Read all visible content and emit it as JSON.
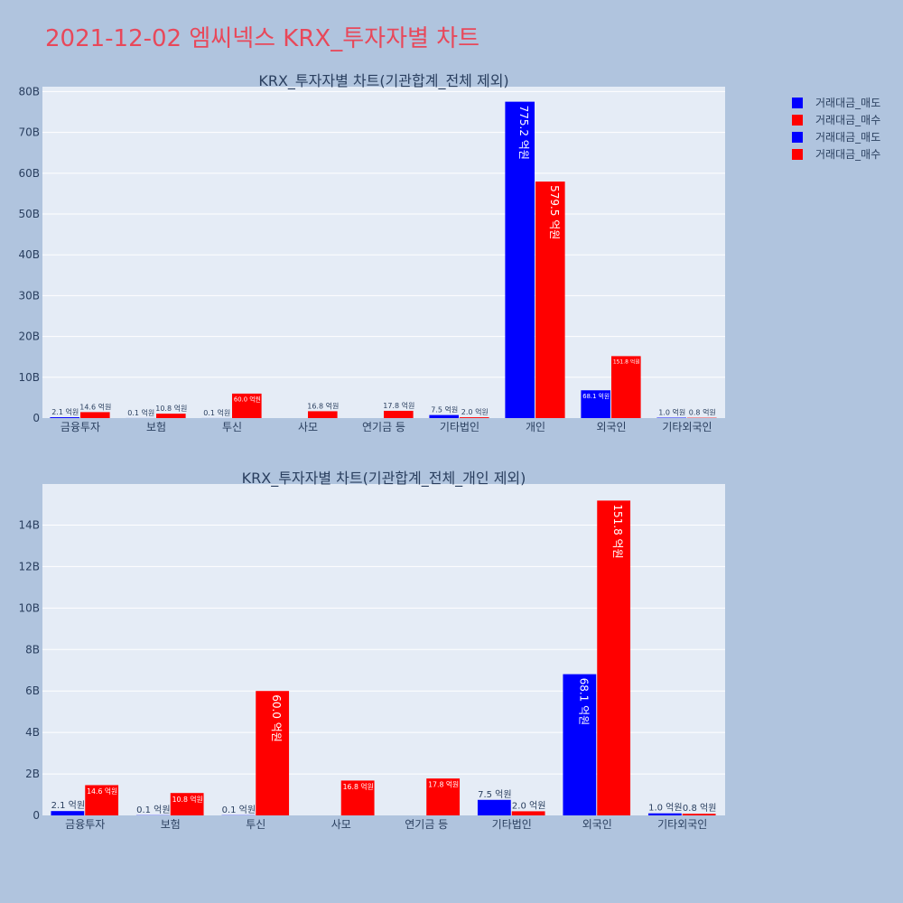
{
  "title": "2021-12-02 엠씨넥스 KRX_투자자별 차트",
  "colors": {
    "sell": "#0000ff",
    "buy": "#ff0000"
  },
  "legend": [
    {
      "name": "거래대금_매도",
      "color": "#0000ff"
    },
    {
      "name": "거래대금_매수",
      "color": "#ff0000"
    },
    {
      "name": "거래대금_매도",
      "color": "#0000ff"
    },
    {
      "name": "거래대금_매수",
      "color": "#ff0000"
    }
  ],
  "chart_data": [
    {
      "type": "bar",
      "title": "KRX_투자자별 차트(기관합계_전체 제외)",
      "categories": [
        "금융투자",
        "보험",
        "투신",
        "사모",
        "연기금 등",
        "기타법인",
        "개인",
        "외국인",
        "기타외국인"
      ],
      "series": [
        {
          "name": "거래대금_매도",
          "values": [
            0.21,
            0.01,
            0.01,
            0,
            0,
            0.75,
            77.52,
            6.81,
            0.1
          ],
          "labels": [
            "2.1 억원",
            "0.1 억원",
            "0.1 억원",
            "",
            "",
            "7.5 억원",
            "775.2 억원",
            "68.1 억원",
            "1.0 억원"
          ]
        },
        {
          "name": "거래대금_매수",
          "values": [
            1.46,
            1.08,
            6.0,
            1.68,
            1.78,
            0.2,
            57.95,
            15.18,
            0.08
          ],
          "labels": [
            "14.6 억원",
            "10.8 억원",
            "60.0 억원",
            "16.8 억원",
            "17.8 억원",
            "2.0 억원",
            "579.5 억원",
            "151.8 억원",
            "0.8 억원"
          ]
        }
      ],
      "yticks": [
        "0",
        "10B",
        "20B",
        "30B",
        "40B",
        "50B",
        "60B",
        "70B",
        "80B"
      ],
      "ylim": [
        0,
        81.2
      ]
    },
    {
      "type": "bar",
      "title": "KRX_투자자별 차트(기관합계_전체_개인 제외)",
      "categories": [
        "금융투자",
        "보험",
        "투신",
        "사모",
        "연기금 등",
        "기타법인",
        "외국인",
        "기타외국인"
      ],
      "series": [
        {
          "name": "거래대금_매도",
          "values": [
            0.21,
            0.01,
            0.01,
            0,
            0,
            0.75,
            6.81,
            0.1
          ],
          "labels": [
            "2.1 억원",
            "0.1 억원",
            "0.1 억원",
            "",
            "",
            "7.5 억원",
            "68.1 억원",
            "1.0 억원"
          ]
        },
        {
          "name": "거래대금_매수",
          "values": [
            1.46,
            1.08,
            6.0,
            1.68,
            1.78,
            0.2,
            15.18,
            0.08
          ],
          "labels": [
            "14.6 억원",
            "10.8 억원",
            "60.0 억원",
            "16.8 억원",
            "17.8 억원",
            "2.0 억원",
            "151.8 억원",
            "0.8 억원"
          ]
        }
      ],
      "yticks": [
        "0",
        "2B",
        "4B",
        "6B",
        "8B",
        "10B",
        "12B",
        "14B"
      ],
      "ylim": [
        0,
        15.98
      ]
    }
  ]
}
